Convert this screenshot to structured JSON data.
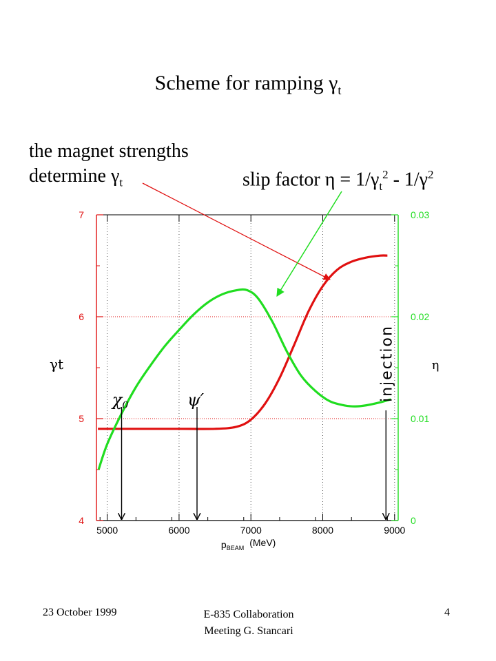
{
  "slide": {
    "title": "Scheme for ramping γ",
    "title_sub": "t",
    "annotation_magnet_line1": "the magnet strengths",
    "annotation_magnet_line2": "determine γ",
    "annotation_magnet_sub": "t",
    "annotation_slip_a": "slip factor η = 1/γ",
    "annotation_slip_sub": "t",
    "annotation_slip_sup1": "2",
    "annotation_slip_b": " - 1/γ",
    "annotation_slip_sup2": "2"
  },
  "footer": {
    "date": "23 October 1999",
    "meeting": "E-835 Collaboration Meeting   G. Stancari",
    "page": "4"
  },
  "chart_data": {
    "type": "line",
    "xlabel": "p",
    "xlabel_sub": "BEAM",
    "xlabel_unit": "(MeV)",
    "ylabel_left": "γt",
    "ylabel_right": "η",
    "xlim": [
      4850,
      9050
    ],
    "x_ticks": [
      "5000",
      "6000",
      "7000",
      "8000",
      "9000"
    ],
    "x_tick_values": [
      5000,
      6000,
      7000,
      8000,
      9000
    ],
    "ylim_left": [
      4,
      7
    ],
    "y_ticks_left": [
      "4",
      "5",
      "6",
      "7"
    ],
    "y_tick_values_left": [
      4,
      5,
      6,
      7
    ],
    "ylim_right": [
      0,
      0.03
    ],
    "y_ticks_right": [
      "0",
      "0.01",
      "0.02",
      "0.03"
    ],
    "y_tick_values_right": [
      0,
      0.01,
      0.02,
      0.03
    ],
    "grid": true,
    "colors": {
      "gamma_t": "#e01010",
      "eta": "#20dd20",
      "right_axis": "#20dd20",
      "left_axis": "#e01010",
      "grid": "#555555",
      "arrow_magnet": "#e01010",
      "arrow_slip": "#20dd20"
    },
    "series": [
      {
        "axis": "left",
        "x": [
          4870,
          5000,
          5500,
          6000,
          6500,
          6800,
          7000,
          7200,
          7400,
          7600,
          7800,
          8000,
          8200,
          8400,
          8600,
          8800,
          8900
        ],
        "values": [
          4.9,
          4.9,
          4.9,
          4.9,
          4.9,
          4.92,
          4.99,
          5.15,
          5.4,
          5.72,
          6.05,
          6.3,
          6.46,
          6.54,
          6.58,
          6.6,
          6.6
        ]
      },
      {
        "axis": "right",
        "x": [
          4880,
          5000,
          5200,
          5400,
          5600,
          5800,
          6000,
          6200,
          6400,
          6600,
          6800,
          6950,
          7100,
          7300,
          7500,
          7700,
          7900,
          8100,
          8300,
          8450,
          8600,
          8800,
          8950
        ],
        "values": [
          0.005,
          0.0075,
          0.0105,
          0.0131,
          0.0152,
          0.0171,
          0.0187,
          0.0202,
          0.0214,
          0.0222,
          0.0226,
          0.0226,
          0.0218,
          0.0195,
          0.0166,
          0.0142,
          0.0127,
          0.0117,
          0.0113,
          0.0112,
          0.0113,
          0.0116,
          0.0119
        ]
      }
    ],
    "markers": [
      {
        "label": "χ",
        "label_sub": "0",
        "x": 5200
      },
      {
        "label": "ψ′",
        "label_sub": "",
        "x": 6250
      },
      {
        "label": "injection",
        "label_sub": "",
        "x": 8880
      }
    ]
  }
}
